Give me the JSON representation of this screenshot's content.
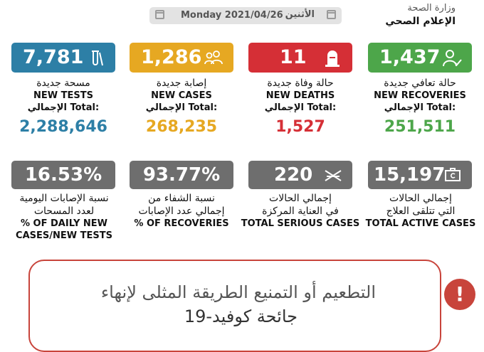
{
  "ministry": {
    "name_ar": "وزارة الصحة",
    "dept_ar": "الإعلام الصحي"
  },
  "date": {
    "english": "Monday 2021/04/26",
    "arabic": "الأثنين"
  },
  "colors": {
    "tests": "#2d7fa6",
    "cases": "#e6a822",
    "deaths": "#d52f36",
    "recoveries": "#4da64a",
    "gray": "#6e6e6e",
    "alert": "#c8443b"
  },
  "stats": [
    {
      "key": "tests",
      "value": "7,781",
      "label_ar": "مسحة جديدة",
      "label_en": "NEW TESTS",
      "total_label": "الإجمالي Total:",
      "total": "2,288,646",
      "icon": "test-tube-icon"
    },
    {
      "key": "cases",
      "value": "1,286",
      "label_ar": "إصابة جديدة",
      "label_en": "NEW CASES",
      "total_label": "الإجمالي Total:",
      "total": "268,235",
      "icon": "virus-group-icon"
    },
    {
      "key": "deaths",
      "value": "11",
      "label_ar": "حالة وفاة جديدة",
      "label_en": "NEW DEATHS",
      "total_label": "الإجمالي Total:",
      "total": "1,527",
      "icon": "tombstone-icon"
    },
    {
      "key": "recoveries",
      "value": "1,437",
      "label_ar": "حالة تعافي جديدة",
      "label_en": "NEW RECOVERIES",
      "total_label": "الإجمالي Total:",
      "total": "251,511",
      "icon": "recovered-person-icon"
    }
  ],
  "secondary": [
    {
      "key": "daily_ratio",
      "value": "16.53%",
      "label_ar_1": "نسبة الإصابات اليومية",
      "label_ar_2": "لعدد المسحات",
      "label_en_1": "% OF DAILY NEW",
      "label_en_2": "CASES/NEW TESTS"
    },
    {
      "key": "recovery_ratio",
      "value": "93.77%",
      "label_ar_1": "نسبة الشفاء من",
      "label_ar_2": "إجمالي عدد الإصابات",
      "label_en_1": "% OF RECOVERIES"
    },
    {
      "key": "serious",
      "value": "220",
      "label_ar_1": "إجمالي الحالات",
      "label_ar_2": "في العناية المركزة",
      "label_en_1": "TOTAL SERIOUS CASES",
      "icon": "hospital-bed-icon"
    },
    {
      "key": "active",
      "value": "15,197",
      "label_ar_1": "إجمالي الحالات",
      "label_ar_2": "التي تتلقى العلاج",
      "label_en_1": "TOTAL ACTIVE CASES",
      "icon": "medical-kit-icon"
    }
  ],
  "banner": {
    "line1": "التطعيم أو التمنيع الطريقة المثلى لإنهاء",
    "line2": "جائحة كوفيد-19",
    "alert": "!"
  }
}
